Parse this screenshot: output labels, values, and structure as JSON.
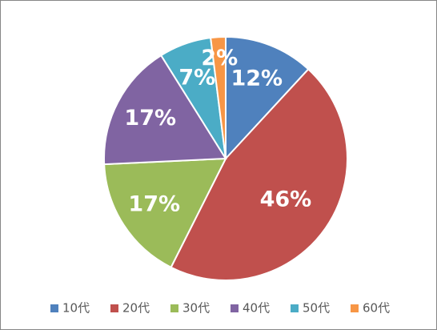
{
  "chart_data": {
    "type": "pie",
    "categories": [
      "10代",
      "20代",
      "30代",
      "40代",
      "50代",
      "60代"
    ],
    "values": [
      12,
      46,
      17,
      17,
      7,
      2
    ],
    "value_labels": [
      "12%",
      "46%",
      "17%",
      "17%",
      "7%",
      "2%"
    ],
    "colors": [
      "#4f81bd",
      "#c0504d",
      "#9bbb59",
      "#8064a2",
      "#4bacc6",
      "#f79646"
    ],
    "legend": "bottom"
  }
}
